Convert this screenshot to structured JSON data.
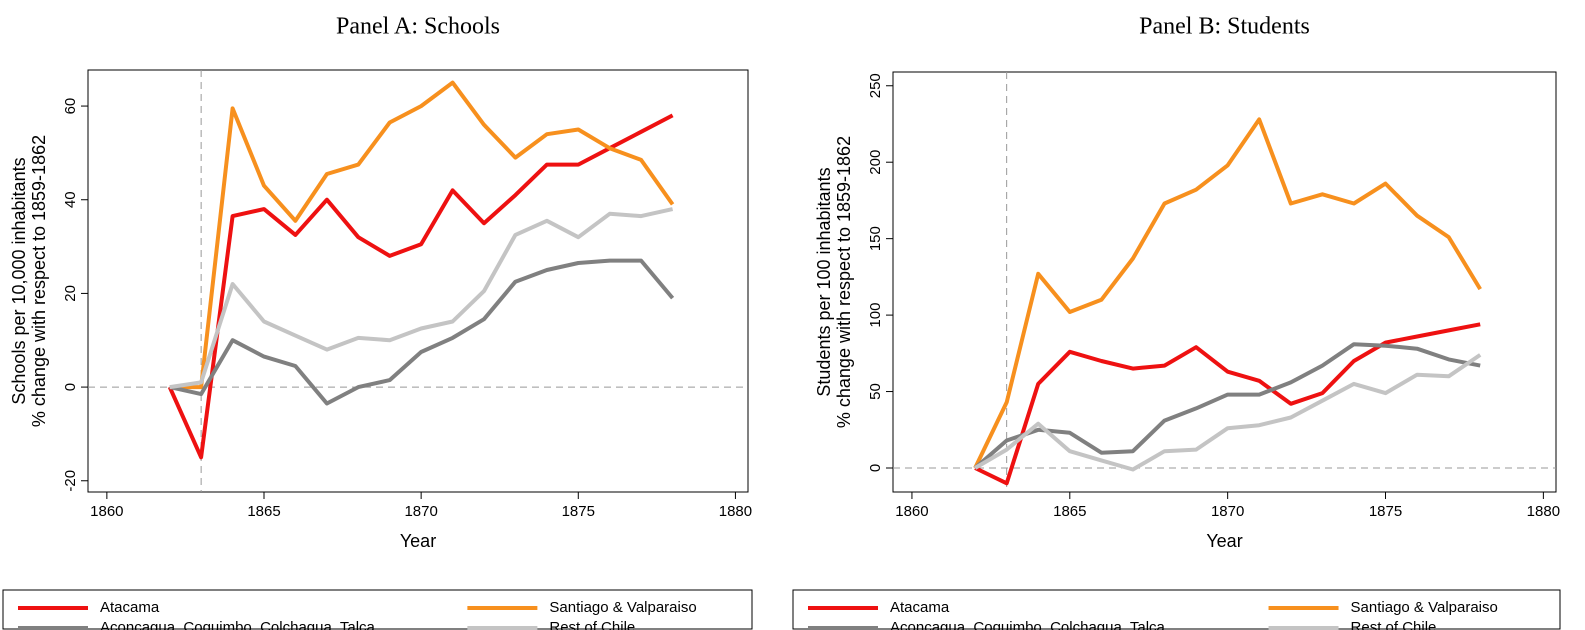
{
  "chart_data": [
    {
      "type": "line",
      "title": "Panel A: Schools",
      "xlabel": "Year",
      "ylabel": [
        "Schools per 10,000 inhabitants",
        "% change with respect to 1859-1862"
      ],
      "x": [
        1862,
        1863,
        1864,
        1865,
        1866,
        1867,
        1868,
        1869,
        1870,
        1871,
        1872,
        1873,
        1874,
        1875,
        1876,
        1877,
        1878
      ],
      "series": [
        {
          "name": "Atacama",
          "color": "#ee1111",
          "values": [
            0,
            -15,
            36.5,
            38,
            32.5,
            40,
            32,
            28,
            30.5,
            42,
            35,
            41,
            47.5,
            47.5,
            51,
            54.5,
            58
          ]
        },
        {
          "name": "Santiago & Valparaiso",
          "color": "#f7901e",
          "values": [
            0,
            0,
            59.5,
            43,
            35.5,
            45.5,
            47.5,
            56.5,
            60,
            65,
            56,
            49,
            54,
            55,
            51,
            48.5,
            39
          ]
        },
        {
          "name": "Aconcagua, Coquimbo, Colchagua, Talca",
          "color": "#808080",
          "values": [
            0,
            -1.5,
            10,
            6.5,
            4.5,
            -3.5,
            0,
            1.5,
            7.5,
            10.5,
            14.5,
            22.5,
            25,
            26.5,
            27,
            27,
            19
          ]
        },
        {
          "name": "Rest of Chile",
          "color": "#c4c4c4",
          "values": [
            0,
            1,
            22,
            14,
            11,
            8,
            10.5,
            10,
            12.5,
            14,
            20.5,
            32.5,
            35.5,
            32,
            37,
            36.5,
            38
          ]
        }
      ],
      "xlim": [
        1859.4,
        1880.4
      ],
      "xticks": [
        1860,
        1865,
        1870,
        1875,
        1880
      ],
      "ylim": [
        -22.4,
        67.7
      ],
      "yticks": [
        -20,
        0,
        20,
        40,
        60
      ],
      "vline": 1863,
      "hline": 0
    },
    {
      "type": "line",
      "title": "Panel B: Students",
      "xlabel": "Year",
      "ylabel": [
        "Students per 100 inhabitants",
        "% change with respect to 1859-1862"
      ],
      "x": [
        1862,
        1863,
        1864,
        1865,
        1866,
        1867,
        1868,
        1869,
        1870,
        1871,
        1872,
        1873,
        1874,
        1875,
        1876,
        1877,
        1878
      ],
      "series": [
        {
          "name": "Atacama",
          "color": "#ee1111",
          "values": [
            0,
            -10,
            55,
            76,
            70,
            65,
            67,
            79,
            63,
            57,
            42,
            49,
            70,
            82,
            86,
            90,
            94
          ]
        },
        {
          "name": "Santiago & Valparaiso",
          "color": "#f7901e",
          "values": [
            0,
            43,
            127,
            102,
            110,
            137,
            173,
            182,
            198,
            228,
            173,
            179,
            173,
            186,
            165,
            151,
            117
          ]
        },
        {
          "name": "Aconcagua, Coquimbo, Colchagua, Talca",
          "color": "#808080",
          "values": [
            0,
            18,
            25,
            23,
            10,
            11,
            31,
            39,
            48,
            48,
            56,
            67,
            81,
            80,
            78,
            71,
            67
          ]
        },
        {
          "name": "Rest of Chile",
          "color": "#c4c4c4",
          "values": [
            0,
            12,
            29,
            11,
            5,
            -1,
            11,
            12,
            26,
            28,
            33,
            44,
            55,
            49,
            61,
            60,
            74
          ]
        }
      ],
      "xlim": [
        1859.4,
        1880.4
      ],
      "xticks": [
        1860,
        1865,
        1870,
        1875,
        1880
      ],
      "ylim": [
        -15.7,
        259
      ],
      "yticks": [
        0,
        50,
        100,
        150,
        200,
        250
      ],
      "vline": 1863,
      "hline": 0
    }
  ]
}
